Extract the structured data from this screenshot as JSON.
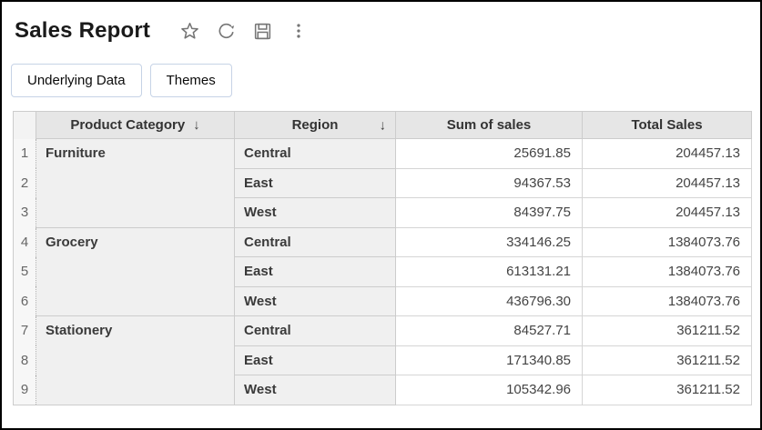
{
  "page": {
    "title": "Sales Report"
  },
  "title_icons": [
    {
      "name": "star-icon"
    },
    {
      "name": "refresh-icon"
    },
    {
      "name": "save-icon"
    },
    {
      "name": "more-options-icon"
    }
  ],
  "toolbar": {
    "underlying_data_label": "Underlying Data",
    "themes_label": "Themes"
  },
  "table": {
    "sort_icon": "↓",
    "columns": [
      "Product Category",
      "Region",
      "Sum of sales",
      "Total Sales"
    ],
    "rows": [
      {
        "num": "1",
        "category": "Furniture",
        "category_rowspan": 3,
        "region": "Central",
        "sum_of_sales": "25691.85",
        "total_sales": "204457.13"
      },
      {
        "num": "2",
        "region": "East",
        "sum_of_sales": "94367.53",
        "total_sales": "204457.13"
      },
      {
        "num": "3",
        "region": "West",
        "sum_of_sales": "84397.75",
        "total_sales": "204457.13"
      },
      {
        "num": "4",
        "category": "Grocery",
        "category_rowspan": 3,
        "region": "Central",
        "sum_of_sales": "334146.25",
        "total_sales": "1384073.76"
      },
      {
        "num": "5",
        "region": "East",
        "sum_of_sales": "613131.21",
        "total_sales": "1384073.76"
      },
      {
        "num": "6",
        "region": "West",
        "sum_of_sales": "436796.30",
        "total_sales": "1384073.76"
      },
      {
        "num": "7",
        "category": "Stationery",
        "category_rowspan": 3,
        "region": "Central",
        "sum_of_sales": "84527.71",
        "total_sales": "361211.52"
      },
      {
        "num": "8",
        "region": "East",
        "sum_of_sales": "171340.85",
        "total_sales": "361211.52"
      },
      {
        "num": "9",
        "region": "West",
        "sum_of_sales": "105342.96",
        "total_sales": "361211.52"
      }
    ]
  },
  "colors": {
    "header_bg": "#e6e6e6",
    "shaded_cell_bg": "#f0f0f0",
    "grid_border": "#cccccc",
    "button_border": "#c6d3e6",
    "icon_gray": "#757575",
    "frame": "#000000"
  }
}
